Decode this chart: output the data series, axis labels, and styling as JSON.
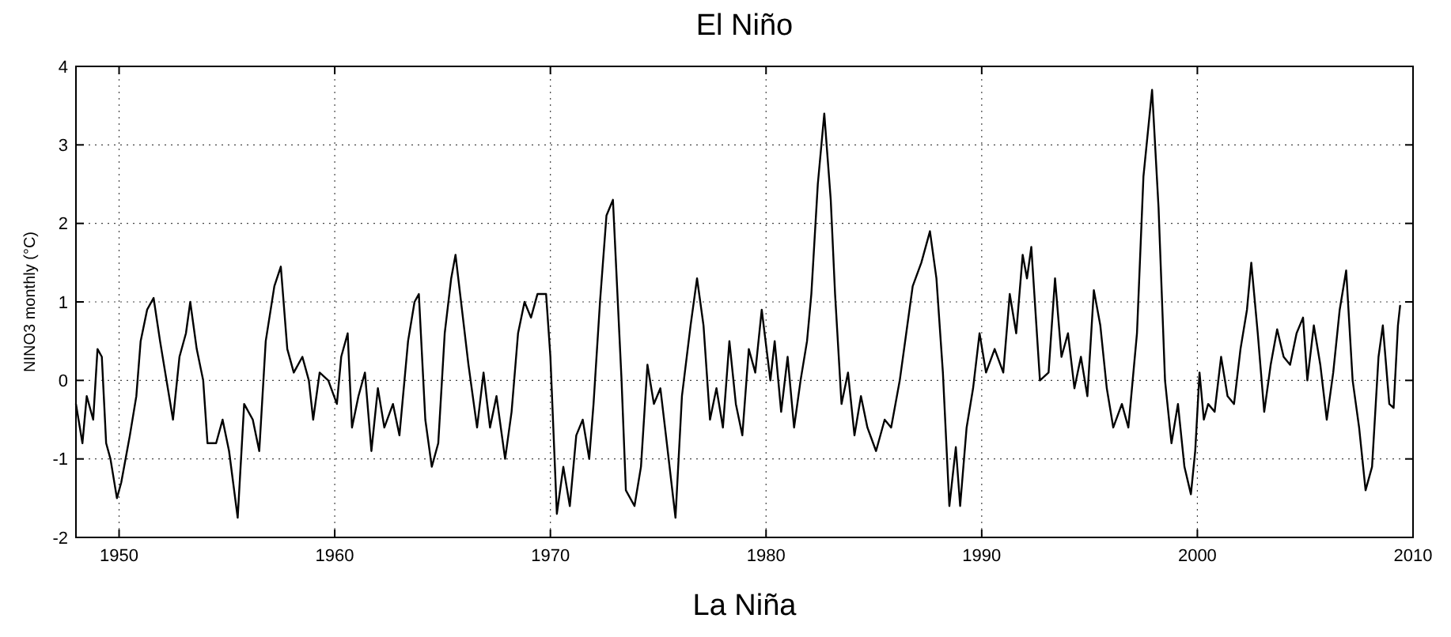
{
  "chart_data": {
    "type": "line",
    "title": "El Niño",
    "ylabel": "NINO3 monthly (°C)",
    "annotations": [
      "La Niña"
    ],
    "xlim": [
      1948,
      2010
    ],
    "xticks": [
      1950,
      1960,
      1970,
      1980,
      1990,
      2000,
      2010
    ],
    "ylim": [
      -2,
      4
    ],
    "yticks": [
      -2,
      -1,
      0,
      1,
      2,
      3,
      4
    ],
    "grid": true,
    "marker": "none",
    "line_style": "solid",
    "series": [
      {
        "color": "#000000",
        "x": [
          1948.0,
          1948.3,
          1948.5,
          1948.8,
          1949.0,
          1949.2,
          1949.4,
          1949.6,
          1949.9,
          1950.1,
          1950.3,
          1950.5,
          1950.8,
          1951.0,
          1951.3,
          1951.6,
          1951.9,
          1952.2,
          1952.5,
          1952.8,
          1953.1,
          1953.3,
          1953.6,
          1953.9,
          1954.1,
          1954.5,
          1954.8,
          1955.1,
          1955.5,
          1955.8,
          1956.2,
          1956.5,
          1956.8,
          1957.2,
          1957.5,
          1957.8,
          1958.1,
          1958.5,
          1958.8,
          1959.0,
          1959.3,
          1959.7,
          1960.1,
          1960.3,
          1960.6,
          1960.8,
          1961.1,
          1961.4,
          1961.7,
          1962.0,
          1962.3,
          1962.7,
          1963.0,
          1963.4,
          1963.7,
          1963.9,
          1964.2,
          1964.5,
          1964.8,
          1965.1,
          1965.4,
          1965.6,
          1965.9,
          1966.2,
          1966.6,
          1966.9,
          1967.2,
          1967.5,
          1967.9,
          1968.2,
          1968.5,
          1968.8,
          1969.1,
          1969.4,
          1969.8,
          1970.0,
          1970.3,
          1970.6,
          1970.9,
          1971.2,
          1971.5,
          1971.8,
          1972.0,
          1972.3,
          1972.6,
          1972.9,
          1973.3,
          1973.5,
          1973.9,
          1974.2,
          1974.5,
          1974.8,
          1975.1,
          1975.4,
          1975.8,
          1976.1,
          1976.5,
          1976.8,
          1977.1,
          1977.4,
          1977.7,
          1978.0,
          1978.3,
          1978.6,
          1978.9,
          1979.2,
          1979.5,
          1979.8,
          1980.2,
          1980.4,
          1980.7,
          1981.0,
          1981.3,
          1981.6,
          1981.9,
          1982.1,
          1982.4,
          1982.7,
          1983.0,
          1983.2,
          1983.5,
          1983.8,
          1984.1,
          1984.4,
          1984.7,
          1985.1,
          1985.5,
          1985.8,
          1986.2,
          1986.5,
          1986.8,
          1987.2,
          1987.6,
          1987.9,
          1988.2,
          1988.5,
          1988.8,
          1989.0,
          1989.3,
          1989.6,
          1989.9,
          1990.2,
          1990.6,
          1991.0,
          1991.3,
          1991.6,
          1991.9,
          1992.1,
          1992.3,
          1992.7,
          1993.1,
          1993.4,
          1993.7,
          1994.0,
          1994.3,
          1994.6,
          1994.9,
          1995.2,
          1995.5,
          1995.8,
          1996.1,
          1996.5,
          1996.8,
          1997.2,
          1997.5,
          1997.9,
          1998.2,
          1998.5,
          1998.8,
          1999.1,
          1999.4,
          1999.7,
          1999.9,
          2000.1,
          2000.3,
          2000.5,
          2000.8,
          2001.1,
          2001.4,
          2001.7,
          2002.0,
          2002.3,
          2002.5,
          2002.8,
          2003.1,
          2003.4,
          2003.7,
          2004.0,
          2004.3,
          2004.6,
          2004.9,
          2005.1,
          2005.4,
          2005.7,
          2006.0,
          2006.3,
          2006.6,
          2006.9,
          2007.2,
          2007.5,
          2007.8,
          2008.1,
          2008.4,
          2008.6,
          2008.9,
          2009.1,
          2009.3,
          2009.4
        ],
        "values": [
          -0.3,
          -0.8,
          -0.2,
          -0.5,
          0.4,
          0.3,
          -0.8,
          -1.0,
          -1.5,
          -1.3,
          -1.0,
          -0.7,
          -0.2,
          0.5,
          0.9,
          1.05,
          0.5,
          0.0,
          -0.5,
          0.3,
          0.6,
          1.0,
          0.4,
          0.0,
          -0.8,
          -0.8,
          -0.5,
          -0.9,
          -1.75,
          -0.3,
          -0.5,
          -0.9,
          0.5,
          1.2,
          1.45,
          0.4,
          0.1,
          0.3,
          0.0,
          -0.5,
          0.1,
          0.0,
          -0.3,
          0.3,
          0.6,
          -0.6,
          -0.2,
          0.1,
          -0.9,
          -0.1,
          -0.6,
          -0.3,
          -0.7,
          0.5,
          1.0,
          1.1,
          -0.5,
          -1.1,
          -0.8,
          0.6,
          1.3,
          1.6,
          0.9,
          0.2,
          -0.6,
          0.1,
          -0.6,
          -0.2,
          -1.0,
          -0.4,
          0.6,
          1.0,
          0.8,
          1.1,
          1.1,
          0.3,
          -1.7,
          -1.1,
          -1.6,
          -0.7,
          -0.5,
          -1.0,
          -0.3,
          1.0,
          2.1,
          2.3,
          0.0,
          -1.4,
          -1.6,
          -1.1,
          0.2,
          -0.3,
          -0.1,
          -0.8,
          -1.75,
          -0.2,
          0.7,
          1.3,
          0.7,
          -0.5,
          -0.1,
          -0.6,
          0.5,
          -0.3,
          -0.7,
          0.4,
          0.1,
          0.9,
          0.0,
          0.5,
          -0.4,
          0.3,
          -0.6,
          0.0,
          0.5,
          1.1,
          2.5,
          3.4,
          2.3,
          1.1,
          -0.3,
          0.1,
          -0.7,
          -0.2,
          -0.6,
          -0.9,
          -0.5,
          -0.6,
          0.0,
          0.6,
          1.2,
          1.5,
          1.9,
          1.3,
          0.1,
          -1.6,
          -0.85,
          -1.6,
          -0.6,
          -0.1,
          0.6,
          0.1,
          0.4,
          0.1,
          1.1,
          0.6,
          1.6,
          1.3,
          1.7,
          0.0,
          0.1,
          1.3,
          0.3,
          0.6,
          -0.1,
          0.3,
          -0.2,
          1.15,
          0.7,
          -0.1,
          -0.6,
          -0.3,
          -0.6,
          0.6,
          2.6,
          3.7,
          2.2,
          0.0,
          -0.8,
          -0.3,
          -1.1,
          -1.45,
          -0.9,
          0.1,
          -0.5,
          -0.3,
          -0.4,
          0.3,
          -0.2,
          -0.3,
          0.4,
          0.9,
          1.5,
          0.6,
          -0.4,
          0.2,
          0.65,
          0.3,
          0.2,
          0.6,
          0.8,
          0.0,
          0.7,
          0.2,
          -0.5,
          0.1,
          0.9,
          1.4,
          0.0,
          -0.6,
          -1.4,
          -1.1,
          0.3,
          0.7,
          -0.3,
          -0.35,
          0.7,
          0.95
        ]
      }
    ]
  }
}
